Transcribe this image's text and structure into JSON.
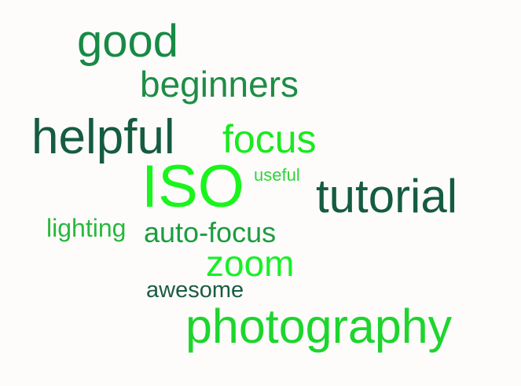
{
  "words": {
    "good": "good",
    "beginners": "beginners",
    "helpful": "helpful",
    "focus": "focus",
    "iso": "ISO",
    "useful": "useful",
    "tutorial": "tutorial",
    "lighting": "lighting",
    "auto_focus": "auto-focus",
    "zoom": "zoom",
    "awesome": "awesome",
    "photography": "photography"
  },
  "colors": {
    "background": "#fdfcfb",
    "dark_green": "#155c40",
    "medium_green": "#1f8d45",
    "bright_green": "#19f51c"
  }
}
